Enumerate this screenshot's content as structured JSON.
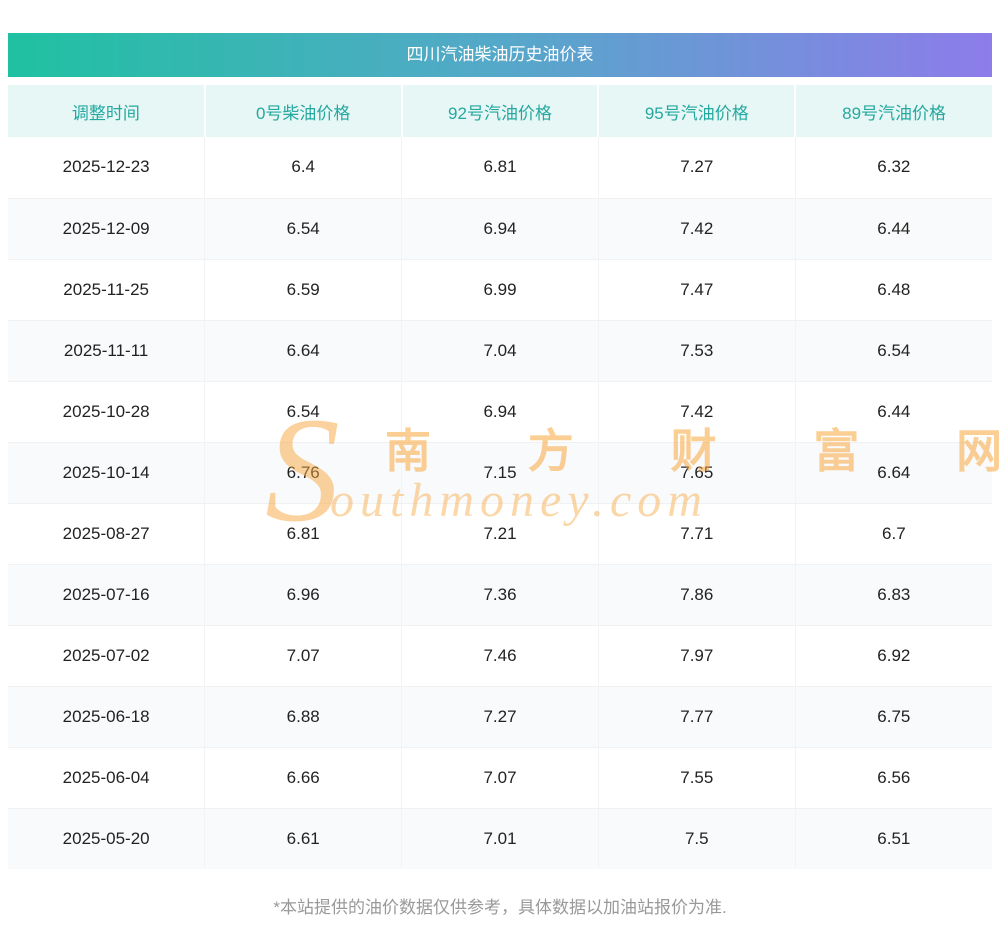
{
  "page": {
    "title": "四川汽油柴油历史油价表",
    "footnote": "*本站提供的油价数据仅供参考，具体数据以加油站报价为准."
  },
  "watermark": {
    "initial": "S",
    "cn": "南 方 财 富 网",
    "en": "outhmoney.com"
  },
  "colors": {
    "gradient_start": "#1fc1a1",
    "gradient_end": "#8d7cea",
    "header_bg": "#e6f7f5",
    "header_text": "#25a8a0",
    "watermark": "#f7a63d",
    "footnote_text": "#999999"
  },
  "chart_data": {
    "type": "table",
    "title": "四川汽油柴油历史油价表",
    "columns": [
      "调整时间",
      "0号柴油价格",
      "92号汽油价格",
      "95号汽油价格",
      "89号汽油价格"
    ],
    "rows": [
      [
        "2025-12-23",
        "6.4",
        "6.81",
        "7.27",
        "6.32"
      ],
      [
        "2025-12-09",
        "6.54",
        "6.94",
        "7.42",
        "6.44"
      ],
      [
        "2025-11-25",
        "6.59",
        "6.99",
        "7.47",
        "6.48"
      ],
      [
        "2025-11-11",
        "6.64",
        "7.04",
        "7.53",
        "6.54"
      ],
      [
        "2025-10-28",
        "6.54",
        "6.94",
        "7.42",
        "6.44"
      ],
      [
        "2025-10-14",
        "6.76",
        "7.15",
        "7.65",
        "6.64"
      ],
      [
        "2025-08-27",
        "6.81",
        "7.21",
        "7.71",
        "6.7"
      ],
      [
        "2025-07-16",
        "6.96",
        "7.36",
        "7.86",
        "6.83"
      ],
      [
        "2025-07-02",
        "7.07",
        "7.46",
        "7.97",
        "6.92"
      ],
      [
        "2025-06-18",
        "6.88",
        "7.27",
        "7.77",
        "6.75"
      ],
      [
        "2025-06-04",
        "6.66",
        "7.07",
        "7.55",
        "6.56"
      ],
      [
        "2025-05-20",
        "6.61",
        "7.01",
        "7.5",
        "6.51"
      ]
    ]
  }
}
